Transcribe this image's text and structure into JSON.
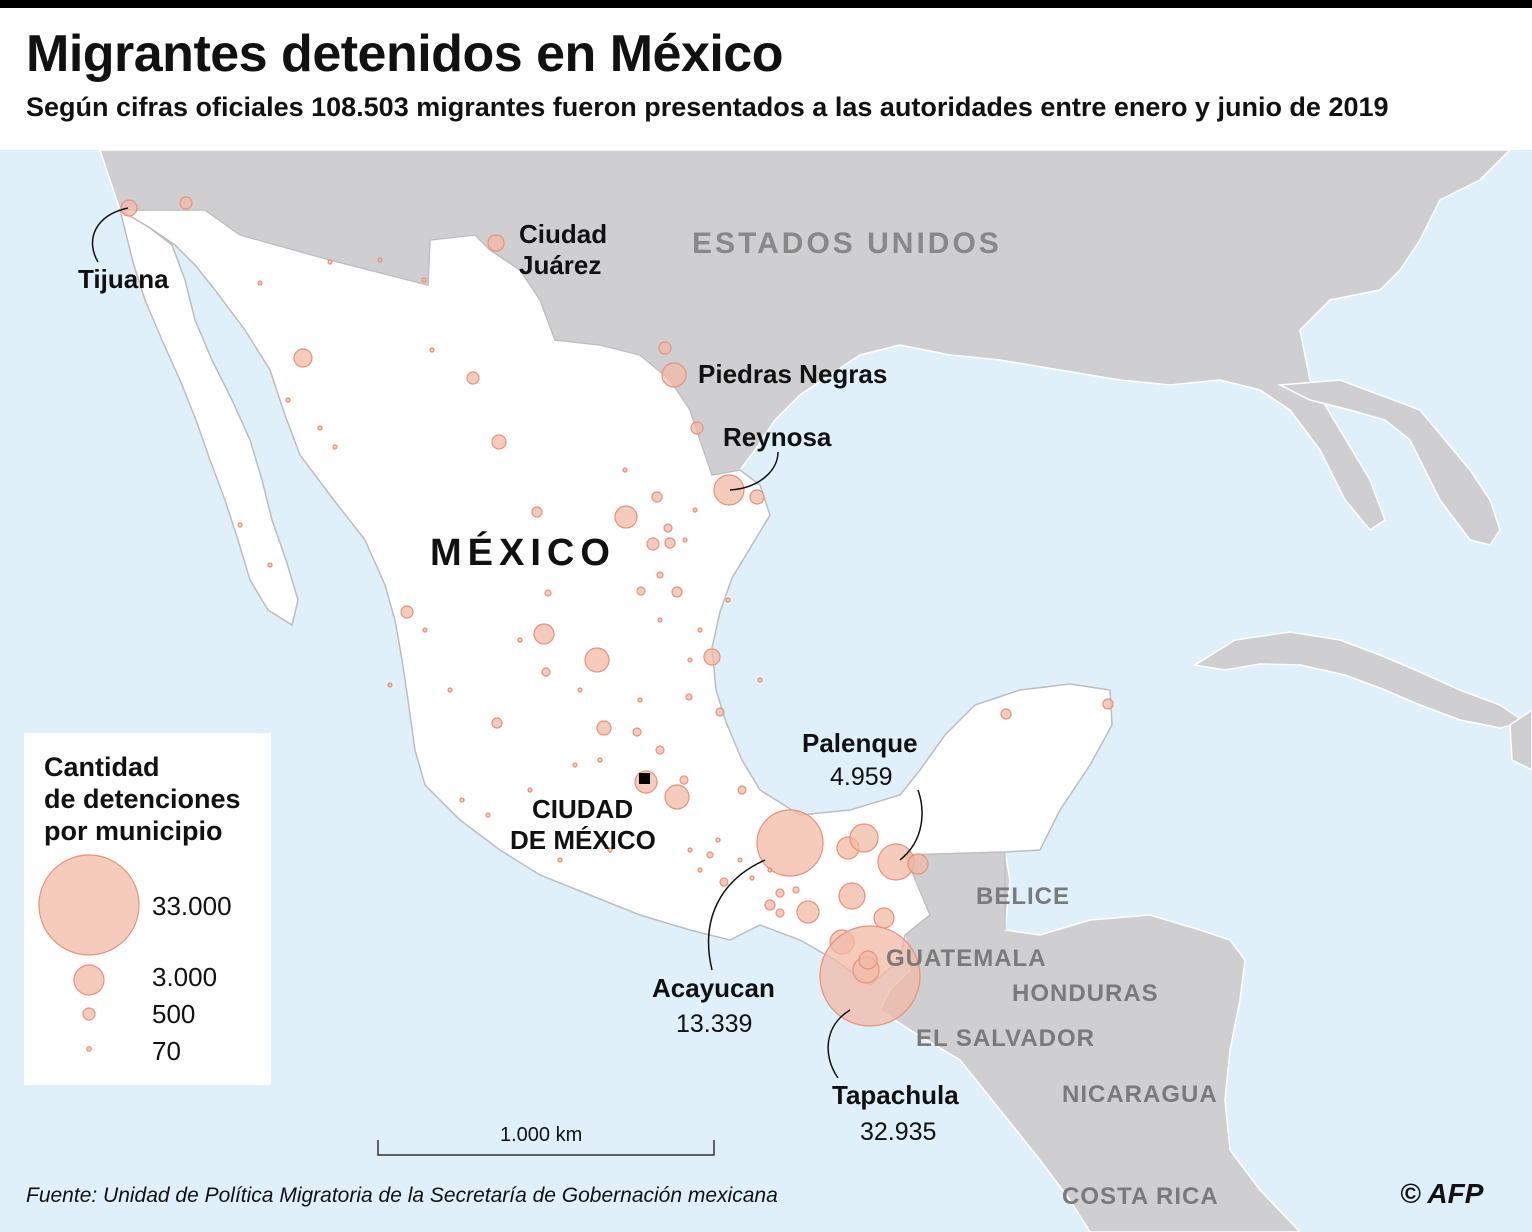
{
  "title": "Migrantes detenidos en México",
  "subtitle": "Según cifras oficiales 108.503 migrantes fueron presentados a las autoridades entre enero y junio de 2019",
  "countries": {
    "usa": "ESTADOS UNIDOS",
    "mexico": "MÉXICO",
    "belize": "BELICE",
    "guatemala": "GUATEMALA",
    "honduras": "HONDURAS",
    "el_salvador": "EL SALVADOR",
    "nicaragua": "NICARAGUA",
    "costa_rica": "COSTA RICA"
  },
  "capital": {
    "line1": "CIUDAD",
    "line2": "DE MÉXICO"
  },
  "cities": {
    "tijuana": {
      "name": "Tijuana"
    },
    "juarez": {
      "line1": "Ciudad",
      "line2": "Juárez"
    },
    "piedras": {
      "name": "Piedras Negras"
    },
    "reynosa": {
      "name": "Reynosa"
    },
    "palenque": {
      "name": "Palenque",
      "value": "4.959"
    },
    "acayucan": {
      "name": "Acayucan",
      "value": "13.339"
    },
    "tapachula": {
      "name": "Tapachula",
      "value": "32.935"
    }
  },
  "legend": {
    "title_lines": [
      "Cantidad",
      "de detenciones",
      "por municipio"
    ],
    "items": [
      {
        "value": 33000,
        "label": "33.000"
      },
      {
        "value": 3000,
        "label": "3.000"
      },
      {
        "value": 500,
        "label": "500"
      },
      {
        "value": 70,
        "label": "70"
      }
    ]
  },
  "scale_bar": {
    "label": "1.000  km"
  },
  "source": "Fuente: Unidad de Política Migratoria de la Secretaría de Gobernación mexicana",
  "credit": "© AFP",
  "colors": {
    "sea": "#dff0fa",
    "land_other": "#cfcfd1",
    "land_mexico": "#ffffff",
    "bubble": "#f2b9a6"
  }
}
